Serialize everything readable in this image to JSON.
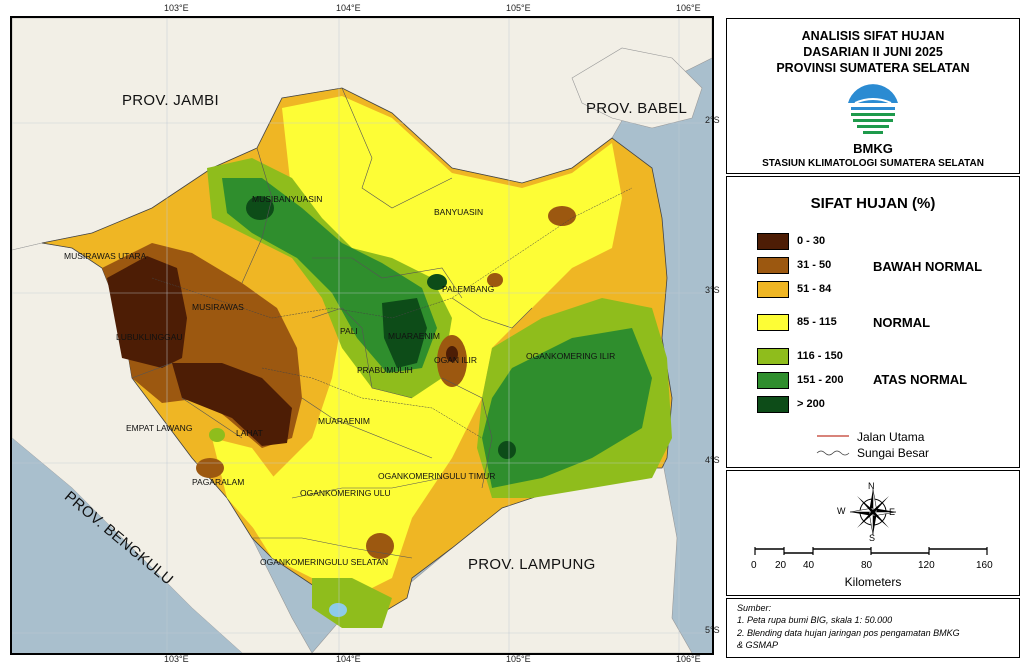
{
  "title": {
    "line1": "ANALISIS SIFAT HUJAN",
    "line2": "DASARIAN II JUNI 2025",
    "line3": "PROVINSI SUMATERA SELATAN",
    "agency": "BMKG",
    "station": "STASIUN KLIMATOLOGI SUMATERA SELATAN"
  },
  "coords": {
    "top": [
      "103°E",
      "104°E",
      "105°E",
      "106°E"
    ],
    "bottom": [
      "103°E",
      "104°E",
      "105°E",
      "106°E"
    ],
    "right": [
      "2°S",
      "3°S",
      "4°S",
      "5°S"
    ]
  },
  "provinces": {
    "jambi": "PROV. JAMBI",
    "babel": "PROV. BABEL",
    "bengkulu": "PROV. BENGKULU",
    "lampung": "PROV. LAMPUNG"
  },
  "regions": {
    "musibanyuasin": "MUSIBANYUASIN",
    "banyuasin": "BANYUASIN",
    "musirawas_utara": "MUSIRAWAS UTARA",
    "palembang": "PALEMBANG",
    "musirawas": "MUSIRAWAS",
    "lubuklinggau": "LUBUKLINGGAU",
    "pali": "PALI",
    "muaraenim_north": "MUARAENIM",
    "ogan_ilir": "OGAN ILIR",
    "ogankomering_ilir": "OGANKOMERING ILIR",
    "prabumulih": "PRABUMULIH",
    "empat_lawang": "EMPAT LAWANG",
    "lahat": "LAHAT",
    "muaraenim_south": "MUARAENIM",
    "ogankomeringulu_timur": "OGANKOMERINGULU TIMUR",
    "pagaralam": "PAGARALAM",
    "ogankomering_ulu": "OGANKOMERING ULU",
    "ogankomeringulu_selatan": "OGANKOMERINGULU SELATAN"
  },
  "legend": {
    "title": "SIFAT HUJAN (%)",
    "classes": [
      {
        "range": "0 - 30",
        "color": "#4d1d05"
      },
      {
        "range": "31 - 50",
        "color": "#9c5810"
      },
      {
        "range": "51 - 84",
        "color": "#efb624"
      },
      {
        "range": "85 - 115",
        "color": "#fdfd36"
      },
      {
        "range": "116 - 150",
        "color": "#8fbd1c"
      },
      {
        "range": "151 - 200",
        "color": "#2f8e2d"
      },
      {
        "range": "> 200",
        "color": "#0d4c18"
      }
    ],
    "categories": {
      "bawah": "BAWAH NORMAL",
      "normal": "NORMAL",
      "atas": "ATAS NORMAL"
    },
    "lines": {
      "road": "Jalan Utama",
      "river": "Sungai Besar"
    }
  },
  "compass": {
    "n": "N",
    "s": "S",
    "e": "E",
    "w": "W"
  },
  "scale": {
    "ticks": [
      "0",
      "20",
      "40",
      "80",
      "120",
      "160"
    ],
    "values": [
      0,
      20,
      40,
      80,
      120,
      160
    ],
    "unit": "Kilometers"
  },
  "sources": {
    "heading": "Sumber:",
    "line1": "1. Peta rupa bumi BIG, skala 1: 50.000",
    "line2": "2. Blending data hujan jaringan pos pengamatan BMKG",
    "line3": "& GSMAP"
  }
}
